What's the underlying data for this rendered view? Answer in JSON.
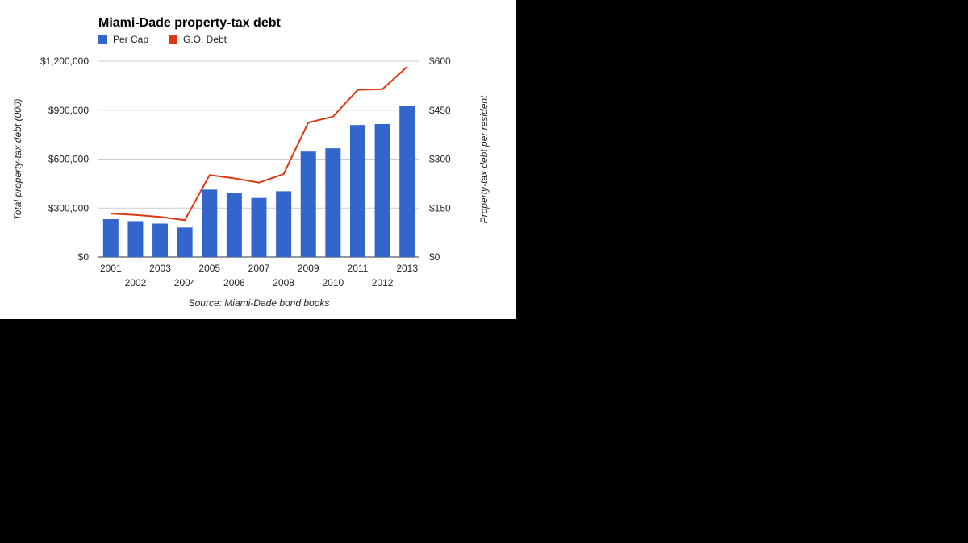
{
  "chart_data": {
    "type": "bar",
    "title": "Miami-Dade property-tax debt",
    "categories": [
      "2001",
      "2002",
      "2003",
      "2004",
      "2005",
      "2006",
      "2007",
      "2008",
      "2009",
      "2010",
      "2011",
      "2012",
      "2013"
    ],
    "series": [
      {
        "name": "Per Cap",
        "type": "bar",
        "axis": "left",
        "color": "#3366cc",
        "values": [
          232000,
          220000,
          205000,
          181000,
          413000,
          393000,
          362000,
          403000,
          646000,
          666000,
          809000,
          815000,
          925000
        ]
      },
      {
        "name": "G.O. Debt",
        "type": "line",
        "axis": "right",
        "color": "#dc3912",
        "values": [
          133,
          129,
          123,
          113,
          251,
          241,
          228,
          254,
          412,
          430,
          512,
          514,
          583
        ]
      }
    ],
    "y_left": {
      "label": "Total property-tax debt (000)",
      "range": [
        0,
        1200000
      ],
      "ticks": [
        "$0",
        "$300,000",
        "$600,000",
        "$900,000",
        "$1,200,000"
      ]
    },
    "y_right": {
      "label": "Property-tax debt per resident",
      "range": [
        0,
        600
      ],
      "ticks": [
        "$0",
        "$150",
        "$300",
        "$450",
        "$600"
      ]
    },
    "legend_position": "top-left",
    "grid": true,
    "source": "Source: Miami-Dade bond books"
  }
}
